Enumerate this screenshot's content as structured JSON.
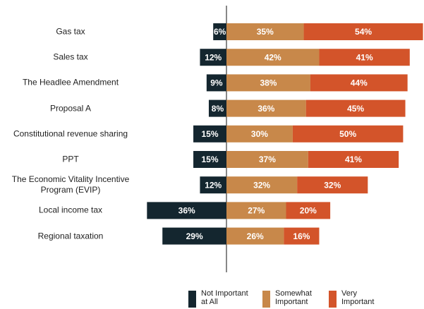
{
  "chart_data": {
    "type": "diverging-bar",
    "categories": [
      "Gas tax",
      "Sales tax",
      "The Headlee Amendment",
      "Proposal A",
      "Constitutional revenue sharing",
      "PPT",
      "The Economic Vitality Incentive Program (EVIP)",
      "Local income tax",
      "Regional taxation"
    ],
    "series": [
      {
        "name": "Not Important at All",
        "color": "#14262f",
        "values": [
          6,
          12,
          9,
          8,
          15,
          15,
          12,
          36,
          29
        ],
        "value_labels": [
          "6%",
          "12%",
          "9%",
          "8%",
          "15%",
          "15%",
          "12%",
          "36%",
          "29%"
        ]
      },
      {
        "name": "Somewhat Important",
        "color": "#c8884a",
        "values": [
          35,
          42,
          38,
          36,
          30,
          37,
          32,
          27,
          26
        ],
        "value_labels": [
          "35%",
          "42%",
          "38%",
          "36%",
          "30%",
          "37%",
          "32%",
          "27%",
          "26%"
        ]
      },
      {
        "name": "Very Important",
        "color": "#d3542a",
        "values": [
          54,
          41,
          44,
          45,
          50,
          41,
          32,
          20,
          16
        ],
        "value_labels": [
          "54%",
          "41%",
          "44%",
          "45%",
          "50%",
          "41%",
          "32%",
          "20%",
          "16%"
        ]
      }
    ]
  }
}
